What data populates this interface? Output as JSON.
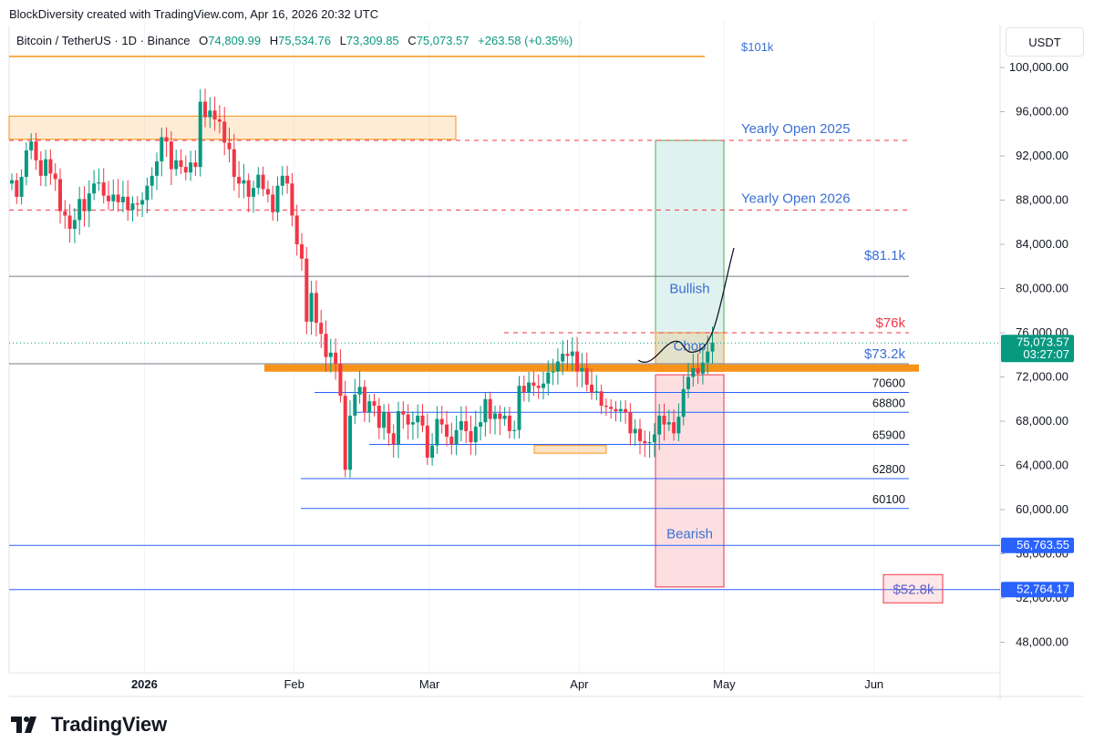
{
  "header": {
    "attribution": "BlockDiversity created with TradingView.com, Apr 16, 2026 20:32 UTC",
    "symbol": "Bitcoin / TetherUS · 1D · Binance",
    "open_label": "O",
    "open": "74,809.99",
    "high_label": "H",
    "high": "75,534.76",
    "low_label": "L",
    "low": "73,309.85",
    "close_label": "C",
    "close": "75,073.57",
    "change": "+263.58 (+0.35%)"
  },
  "unit_button": "USDT",
  "footer": {
    "brand": "TradingView"
  },
  "colors": {
    "up": "#089981",
    "down": "#f23645",
    "orange": "#f7931a",
    "blue": "#2962ff",
    "annotation_blue": "#3b6fd4",
    "green_zone": "#d9f2d9",
    "red_zone": "#fbd7de",
    "chop_zone": "#fff0d4"
  },
  "chart_data": {
    "type": "candlestick",
    "symbol": "Bitcoin / TetherUS",
    "interval": "1D",
    "y_axis": {
      "scale": "linear",
      "range": [
        45000,
        102000
      ],
      "ticks": [
        100000,
        96000,
        92000,
        88000,
        84000,
        80000,
        76000,
        72000,
        68000,
        64000,
        60000,
        56000,
        52000,
        48000
      ],
      "tick_labels": [
        "100,000.00",
        "96,000.00",
        "92,000.00",
        "88,000.00",
        "84,000.00",
        "80,000.00",
        "76,000.00",
        "72,000.00",
        "68,000.00",
        "64,000.00",
        "60,000.00",
        "56,000.00",
        "52,000.00",
        "48,000.00"
      ]
    },
    "x_axis": {
      "range": [
        "2025-12-04",
        "2026-06-09"
      ],
      "ticks": [
        {
          "date": "2026-01-01",
          "label": "2026",
          "bold": true
        },
        {
          "date": "2026-02-01",
          "label": "Feb"
        },
        {
          "date": "2026-03-01",
          "label": "Mar"
        },
        {
          "date": "2026-04-01",
          "label": "Apr"
        },
        {
          "date": "2026-05-01",
          "label": "May"
        },
        {
          "date": "2026-06-01",
          "label": "Jun"
        }
      ]
    },
    "grid": "vertical",
    "price_badges": [
      {
        "price": 75073.57,
        "label": "75,073.57",
        "sublabel": "03:27:07",
        "color": "#089981"
      },
      {
        "price": 56763.55,
        "label": "56,763.55",
        "color": "#2962ff"
      },
      {
        "price": 52764.17,
        "label": "52,764.17",
        "color": "#2962ff"
      }
    ],
    "candles_daily_close": [
      89800,
      88300,
      90100,
      92500,
      93300,
      91600,
      90200,
      91700,
      90400,
      89900,
      87000,
      86600,
      85400,
      86200,
      88100,
      87000,
      88600,
      89500,
      89600,
      88400,
      87900,
      88500,
      87800,
      88300,
      87100,
      87700,
      87600,
      88000,
      89300,
      90200,
      91500,
      93700,
      93300,
      90800,
      91600,
      91000,
      90500,
      91400,
      91000,
      96900,
      95500,
      96100,
      95300,
      95100,
      93200,
      92600,
      90100,
      89500,
      89800,
      88300,
      89100,
      90300,
      89000,
      88500,
      86900,
      89300,
      90200,
      89500,
      86600,
      84000,
      82700,
      77000,
      79600,
      76900,
      75900,
      73800,
      74200,
      73200,
      70300,
      63600,
      68500,
      70400,
      71100,
      68800,
      69800,
      69400,
      67400,
      68800,
      66900,
      65900,
      68900,
      68600,
      67700,
      67900,
      68500,
      67600,
      64700,
      65800,
      68200,
      67700,
      66600,
      65900,
      67200,
      68000,
      67100,
      66100,
      67500,
      67900,
      70000,
      68200,
      68700,
      68200,
      68500,
      67100,
      67200,
      71200,
      70600,
      71500,
      71200,
      71000,
      71400,
      72400,
      72500,
      73400,
      74100,
      73900,
      74300,
      72500,
      72800,
      71300,
      70600,
      70700,
      69400,
      69300,
      69100,
      68900,
      69100,
      68800,
      66900,
      67300,
      66200,
      66000,
      66100,
      66800,
      68500,
      67700,
      67900,
      66900,
      68400,
      70900,
      72000,
      72800,
      72300,
      73300,
      74300,
      75100
    ],
    "horizontal_levels": [
      {
        "price": 101000,
        "label": "$101k",
        "color": "#f7931a",
        "style": "solid"
      },
      {
        "price": 93400,
        "label": "Yearly Open 2025",
        "color": "#f23645",
        "style": "dashed"
      },
      {
        "price": 87100,
        "label": "Yearly Open 2026",
        "color": "#f23645",
        "style": "dashed"
      },
      {
        "price": 81100,
        "label": "$81.1k",
        "color": "#787b86",
        "style": "solid"
      },
      {
        "price": 76000,
        "label": "$76k",
        "color": "#f23645",
        "style": "dashed"
      },
      {
        "price": 73200,
        "label": "$73.2k",
        "color": "#787b86",
        "style": "solid"
      },
      {
        "price": 70600,
        "label": "$70600",
        "color": "#2962ff",
        "style": "solid"
      },
      {
        "price": 68800,
        "label": "$68800",
        "color": "#2962ff",
        "style": "solid"
      },
      {
        "price": 65900,
        "label": "$65900",
        "color": "#2962ff",
        "style": "solid"
      },
      {
        "price": 62800,
        "label": "$62800",
        "color": "#2962ff",
        "style": "solid"
      },
      {
        "price": 60100,
        "label": "$60100",
        "color": "#2962ff",
        "style": "solid"
      },
      {
        "price": 56763.55,
        "label": "",
        "color": "#2962ff",
        "style": "solid"
      },
      {
        "price": 52764.17,
        "label": "",
        "color": "#2962ff",
        "style": "solid"
      }
    ],
    "zones": [
      {
        "label": "",
        "from": 93500,
        "to": 95600,
        "color": "#f7931a"
      },
      {
        "label": "Bullish",
        "from": 73000,
        "to": 93400,
        "color": "#089981"
      },
      {
        "label": "Chop",
        "from": 72500,
        "to": 76000,
        "color": "#f7931a"
      },
      {
        "label": "Bearish",
        "from": 53000,
        "to": 72200,
        "color": "#f23645"
      },
      {
        "label": "",
        "from": 65100,
        "to": 65800,
        "color": "#f7931a"
      }
    ],
    "annotations": [
      {
        "text": "$52.8k",
        "price": 52800
      }
    ]
  }
}
